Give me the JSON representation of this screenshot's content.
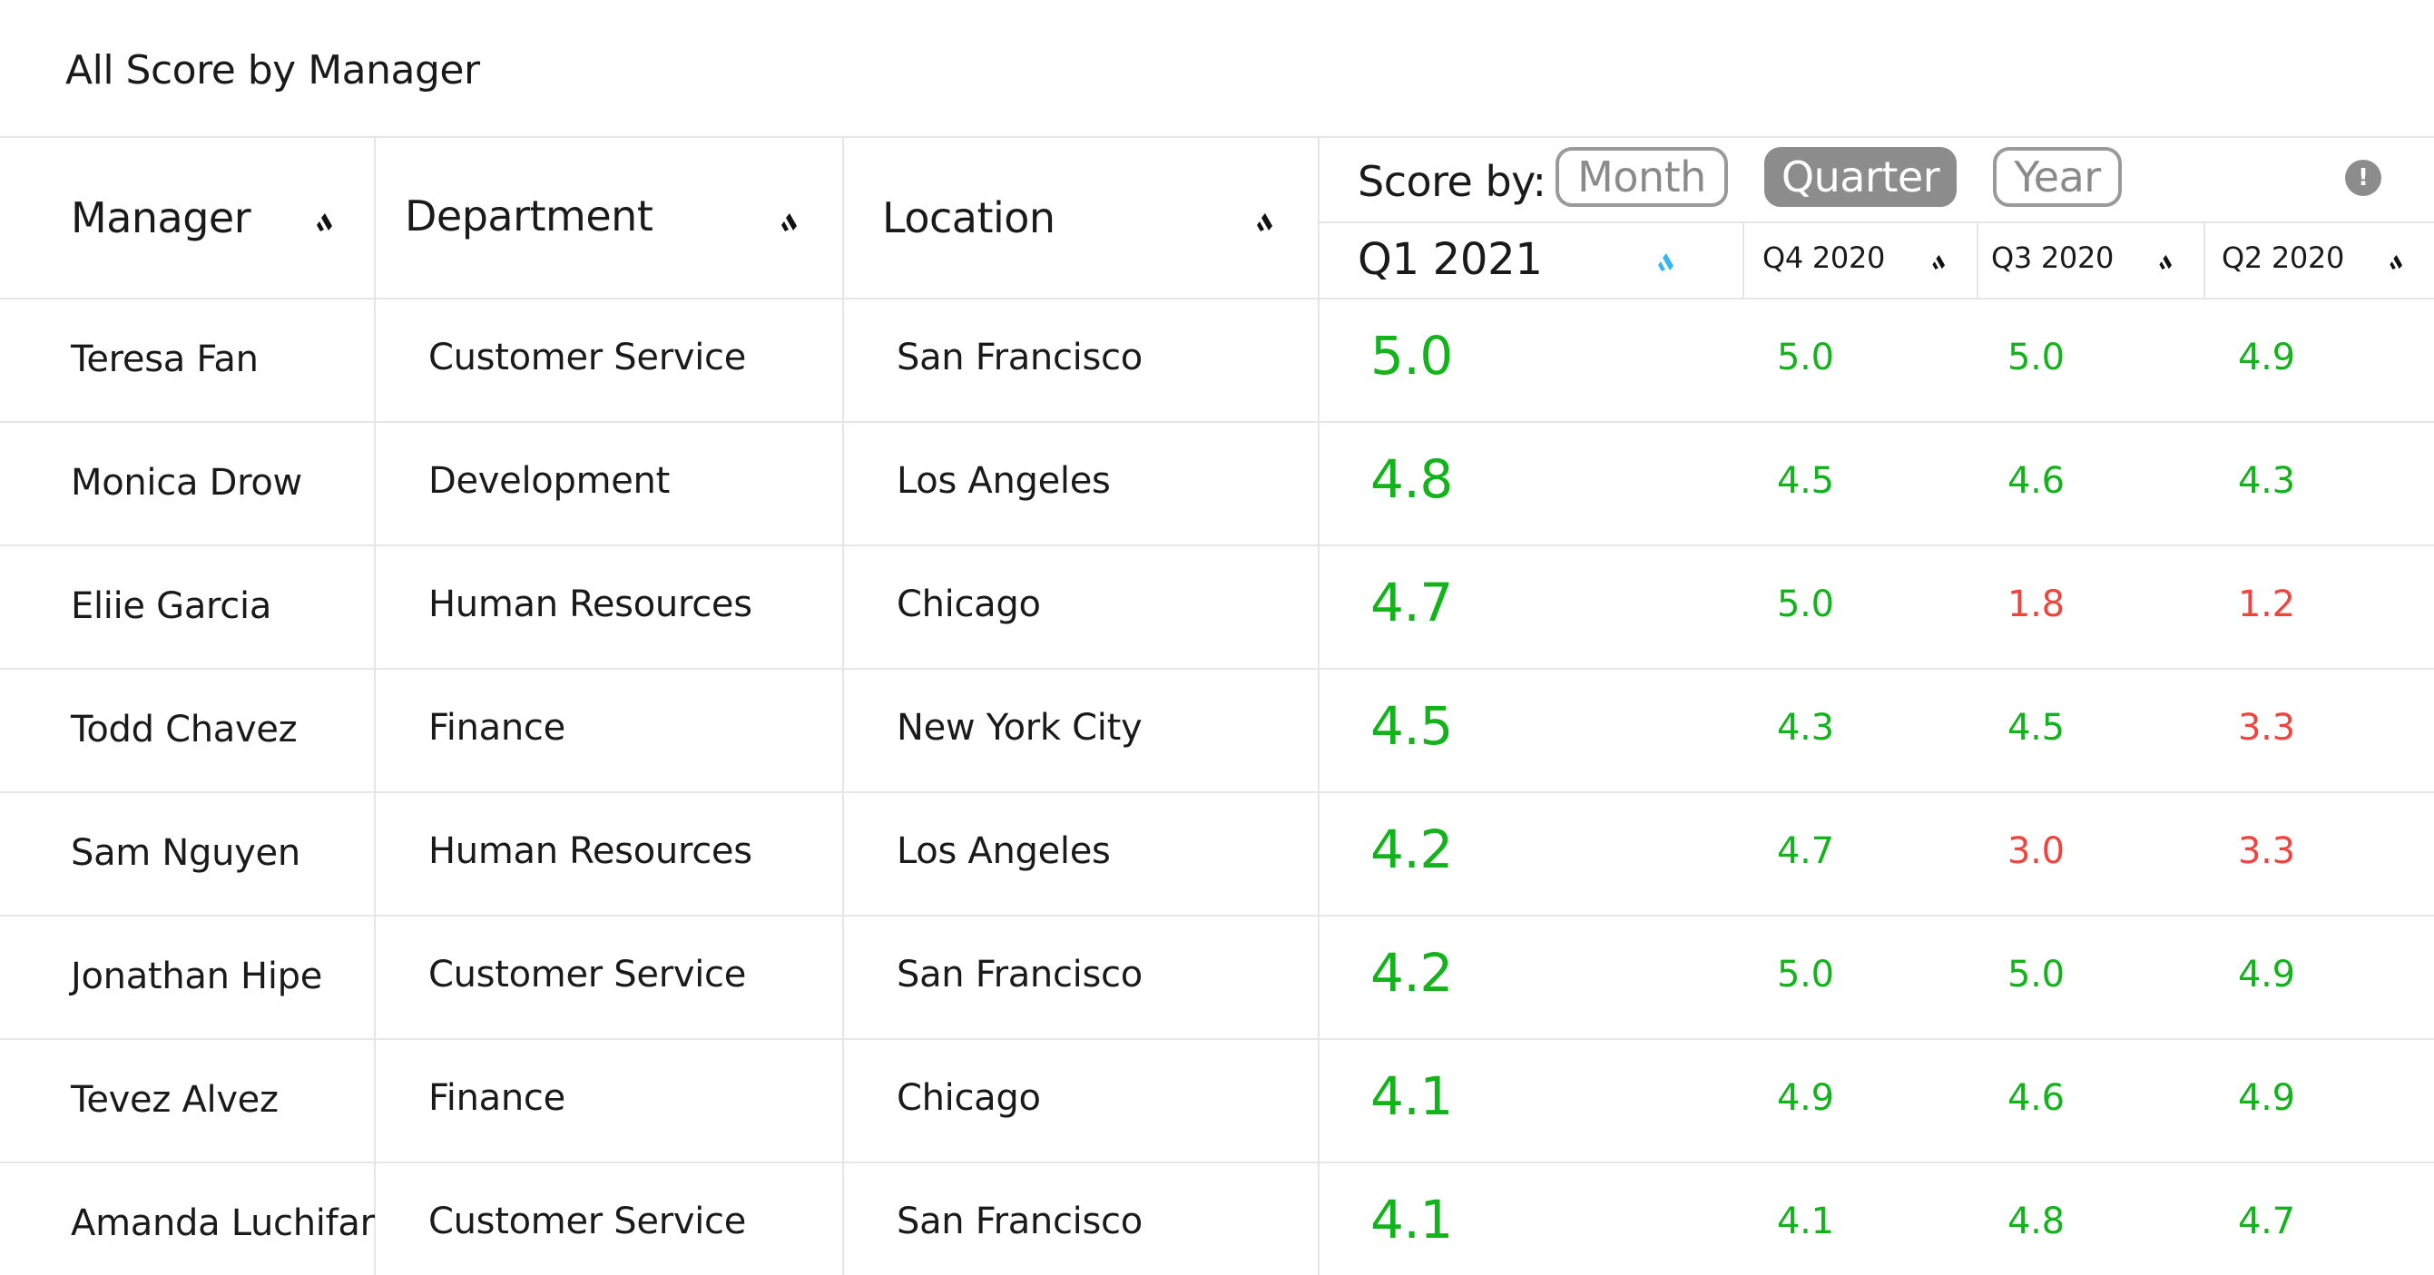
{
  "title": "All Score by Manager",
  "columns": {
    "manager": "Manager",
    "department": "Department",
    "location": "Location"
  },
  "score_by": {
    "label": "Score by:",
    "options": [
      "Month",
      "Quarter",
      "Year"
    ],
    "selected": "Quarter"
  },
  "periods": [
    "Q1 2021",
    "Q4 2020",
    "Q3 2020",
    "Q2 2020"
  ],
  "thresholds": {
    "good_min": 4.0
  },
  "colors": {
    "good": "#12b31b",
    "bad": "#f0443e",
    "active_sort": "#38b6f0"
  },
  "icons": {
    "sort": "sort-icon",
    "info": "info-icon"
  },
  "rows": [
    {
      "manager": "Teresa Fan",
      "department": "Customer Service",
      "location": "San Francisco",
      "scores": [
        "5.0",
        "5.0",
        "5.0",
        "4.9"
      ]
    },
    {
      "manager": "Monica Drow",
      "department": "Development",
      "location": "Los Angeles",
      "scores": [
        "4.8",
        "4.5",
        "4.6",
        "4.3"
      ]
    },
    {
      "manager": "Eliie Garcia",
      "department": "Human Resources",
      "location": "Chicago",
      "scores": [
        "4.7",
        "5.0",
        "1.8",
        "1.2"
      ]
    },
    {
      "manager": "Todd Chavez",
      "department": "Finance",
      "location": "New York City",
      "scores": [
        "4.5",
        "4.3",
        "4.5",
        "3.3"
      ]
    },
    {
      "manager": "Sam Nguyen",
      "department": "Human Resources",
      "location": "Los Angeles",
      "scores": [
        "4.2",
        "4.7",
        "3.0",
        "3.3"
      ]
    },
    {
      "manager": "Jonathan Hipe",
      "department": "Customer Service",
      "location": "San Francisco",
      "scores": [
        "4.2",
        "5.0",
        "5.0",
        "4.9"
      ]
    },
    {
      "manager": "Tevez Alvez",
      "department": "Finance",
      "location": "Chicago",
      "scores": [
        "4.1",
        "4.9",
        "4.6",
        "4.9"
      ]
    },
    {
      "manager": "Amanda Luchifar",
      "department": "Customer Service",
      "location": "San Francisco",
      "scores": [
        "4.1",
        "4.1",
        "4.8",
        "4.7"
      ]
    }
  ]
}
